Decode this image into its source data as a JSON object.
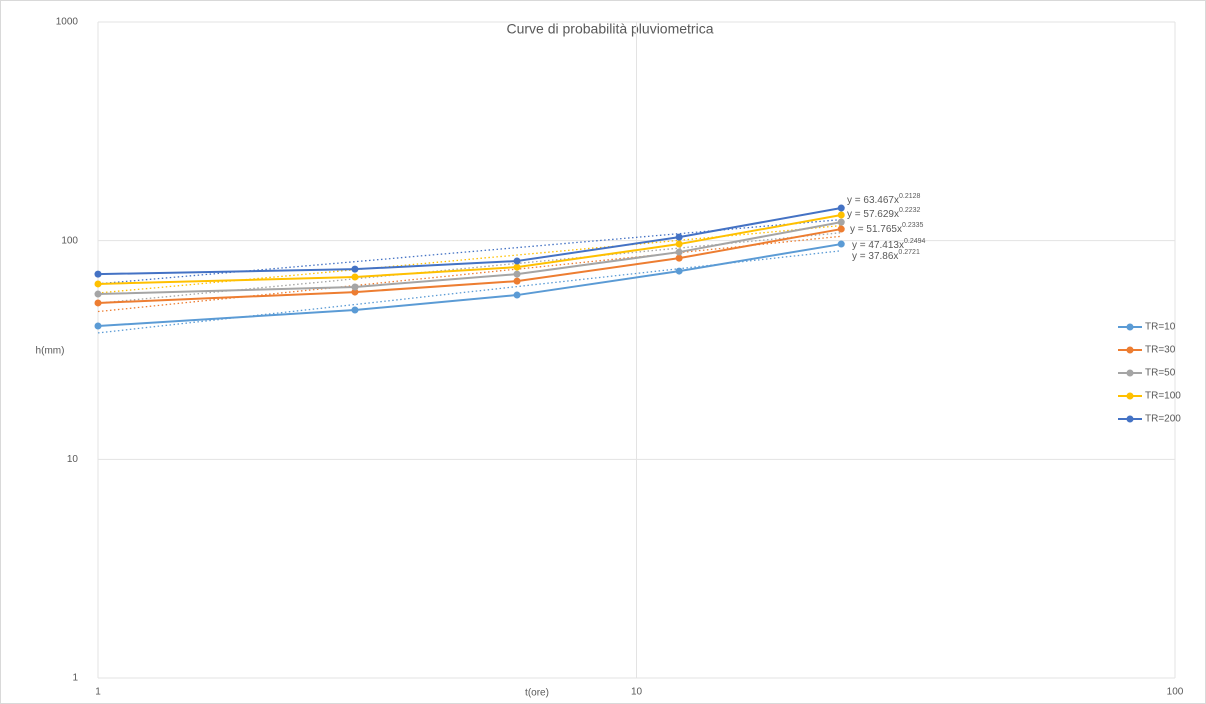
{
  "chart_data": {
    "type": "line",
    "title": "Curve di probabilità pluviometrica",
    "xlabel": "t(ore)",
    "ylabel": "h(mm)",
    "x": [
      1,
      3,
      6,
      12,
      24
    ],
    "log_x": true,
    "log_y": true,
    "grid": true,
    "legend": "right",
    "xlim": [
      1,
      100
    ],
    "xticks": [
      1,
      10,
      100
    ],
    "ylim": [
      1,
      1000
    ],
    "yticks": [
      1,
      10,
      100,
      1000
    ],
    "series": [
      {
        "name": "TR=10",
        "color": "#5b9bd5",
        "values": [
          40.7,
          48.2,
          56.4,
          72.6,
          96.5
        ],
        "trendline": {
          "text": "y = 37.86x",
          "a": 37.86,
          "exponent": 0.2721
        }
      },
      {
        "name": "TR=30",
        "color": "#ed7d31",
        "values": [
          51.9,
          58.2,
          65.3,
          83.2,
          113
        ],
        "trendline": {
          "text": "y = 47.413x",
          "a": 47.413,
          "exponent": 0.2494
        }
      },
      {
        "name": "TR=50",
        "color": "#a5a5a5",
        "values": [
          57.0,
          61.4,
          70.3,
          88.7,
          121.6
        ],
        "trendline": {
          "text": "y = 51.765x",
          "a": 51.765,
          "exponent": 0.2335
        }
      },
      {
        "name": "TR=100",
        "color": "#ffc000",
        "values": [
          63.4,
          68.2,
          75.7,
          96.5,
          131
        ],
        "trendline": {
          "text": "y = 57.629x",
          "a": 57.629,
          "exponent": 0.2232
        }
      },
      {
        "name": "TR=200",
        "color": "#4472c4",
        "values": [
          70.3,
          74.1,
          80.7,
          103.8,
          141
        ],
        "trendline": {
          "text": "y = 63.467x",
          "a": 63.467,
          "exponent": 0.2128
        }
      }
    ]
  }
}
